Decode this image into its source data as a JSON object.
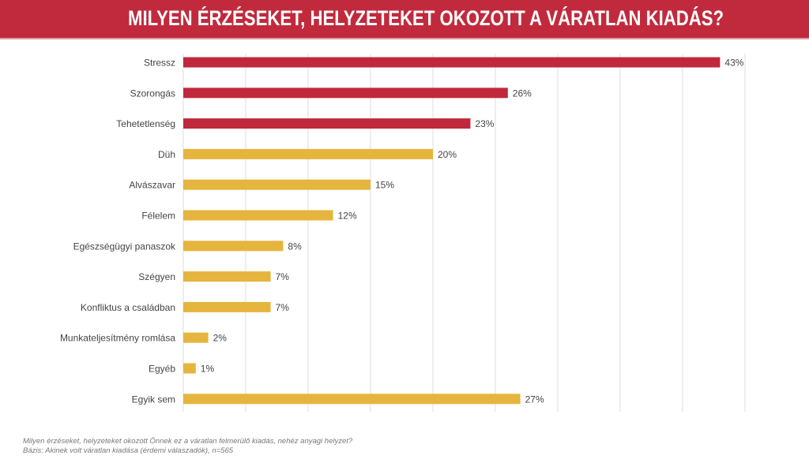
{
  "chart_data": {
    "type": "bar",
    "orientation": "horizontal",
    "title": "MILYEN ÉRZÉSEKET, HELYZETEKET OKOZOTT A VÁRATLAN KIADÁS?",
    "categories": [
      "Stressz",
      "Szorongás",
      "Tehetetlenség",
      "Düh",
      "Alvászavar",
      "Félelem",
      "Egészségügyi panaszok",
      "Szégyen",
      "Konfliktus a családban",
      "Munkateljesítmény romlása",
      "Egyéb",
      "Egyik sem"
    ],
    "values": [
      43,
      26,
      23,
      20,
      15,
      12,
      8,
      7,
      7,
      2,
      1,
      27
    ],
    "labels": [
      "43%",
      "26%",
      "23%",
      "20%",
      "15%",
      "12%",
      "8%",
      "7%",
      "7%",
      "2%",
      "1%",
      "27%"
    ],
    "highlight_count": 3,
    "xlim": [
      0,
      45
    ],
    "grid": true,
    "xlabel": "",
    "ylabel": ""
  },
  "colors": {
    "header": "#c12a3c",
    "highlight": "#c0283b",
    "bar": "#e5b53e"
  },
  "footnote": {
    "question": "Milyen érzéseket, helyzeteket okozott Önnek ez a váratlan felmerülő kiadás, nehéz anyagi helyzet?",
    "base": "Bázis: Akinek volt váratlan kiadása (érdemi válaszadók), n=565"
  }
}
